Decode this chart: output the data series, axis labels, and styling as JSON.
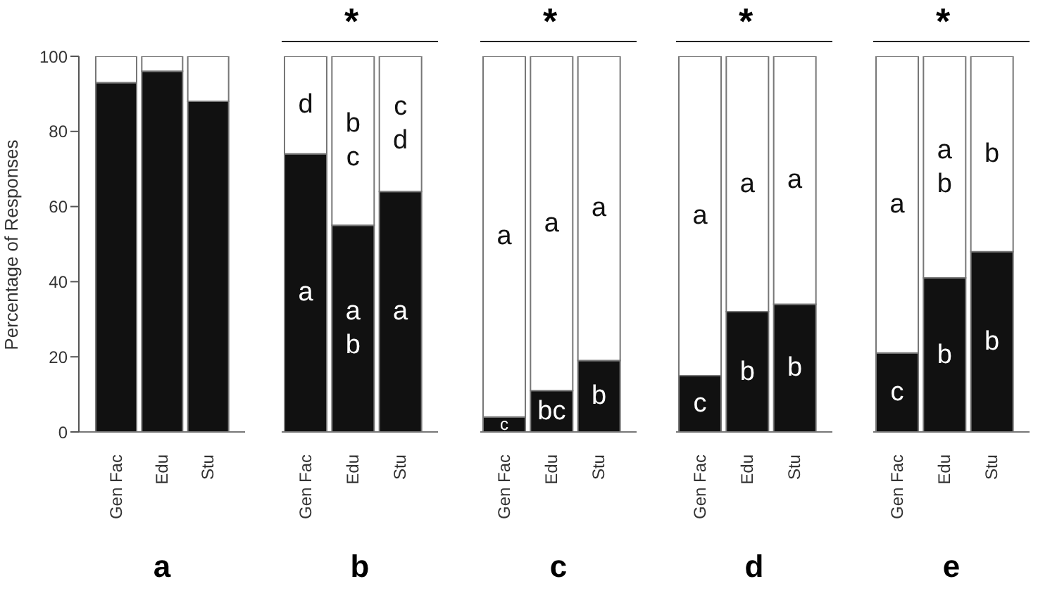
{
  "chart_data": [
    {
      "type": "bar",
      "title": "a",
      "ylabel": "Percentage of Responses",
      "categories": [
        "Gen Fac",
        "Edu",
        "Stu"
      ],
      "stacked": true,
      "legend": false,
      "ylim": [
        0,
        100
      ],
      "yticks": [
        0,
        20,
        40,
        60,
        80,
        100
      ],
      "series": [
        {
          "color": "#111111",
          "values": [
            93,
            96,
            88
          ]
        },
        {
          "color": "#ffffff",
          "values": [
            7,
            4,
            12
          ]
        }
      ]
    },
    {
      "type": "bar",
      "title": "b",
      "categories": [
        "Gen Fac",
        "Edu",
        "Stu"
      ],
      "stacked": true,
      "legend": false,
      "tick_labels": "x",
      "ylim": [
        0,
        100
      ],
      "yticks": [
        0,
        20,
        40,
        60,
        80,
        100
      ],
      "series": [
        {
          "color": "#111111",
          "values": [
            74,
            55,
            64
          ],
          "value_labels": [
            "a",
            "a\nb",
            "a"
          ]
        },
        {
          "color": "#ffffff",
          "values": [
            26,
            45,
            36
          ],
          "value_labels": [
            "d",
            "b\nc",
            "c\nd"
          ]
        }
      ],
      "annotations": [
        "*"
      ]
    },
    {
      "type": "bar",
      "title": "c",
      "categories": [
        "Gen Fac",
        "Edu",
        "Stu"
      ],
      "stacked": true,
      "legend": false,
      "tick_labels": "x",
      "ylim": [
        0,
        100
      ],
      "yticks": [
        0,
        20,
        40,
        60,
        80,
        100
      ],
      "series": [
        {
          "color": "#111111",
          "values": [
            4,
            11,
            19
          ],
          "value_labels": [
            "c",
            "bc",
            "b"
          ]
        },
        {
          "color": "#ffffff",
          "values": [
            96,
            89,
            81
          ],
          "value_labels": [
            "a",
            "a",
            "a"
          ]
        }
      ],
      "annotations": [
        "*"
      ]
    },
    {
      "type": "bar",
      "title": "d",
      "categories": [
        "Gen Fac",
        "Edu",
        "Stu"
      ],
      "stacked": true,
      "legend": false,
      "tick_labels": "x",
      "ylim": [
        0,
        100
      ],
      "yticks": [
        0,
        20,
        40,
        60,
        80,
        100
      ],
      "series": [
        {
          "color": "#111111",
          "values": [
            15,
            32,
            34
          ],
          "value_labels": [
            "c",
            "b",
            "b"
          ]
        },
        {
          "color": "#ffffff",
          "values": [
            85,
            68,
            66
          ],
          "value_labels": [
            "a",
            "a",
            "a"
          ]
        }
      ],
      "annotations": [
        "*"
      ]
    },
    {
      "type": "bar",
      "title": "e",
      "categories": [
        "Gen Fac",
        "Edu",
        "Stu"
      ],
      "stacked": true,
      "legend": false,
      "tick_labels": "x",
      "ylim": [
        0,
        100
      ],
      "yticks": [
        0,
        20,
        40,
        60,
        80,
        100
      ],
      "series": [
        {
          "color": "#111111",
          "values": [
            21,
            41,
            48
          ],
          "value_labels": [
            "c",
            "b",
            "b"
          ]
        },
        {
          "color": "#ffffff",
          "values": [
            79,
            59,
            52
          ],
          "value_labels": [
            "a",
            "a\nb",
            "b"
          ]
        }
      ],
      "annotations": [
        "*"
      ]
    }
  ]
}
